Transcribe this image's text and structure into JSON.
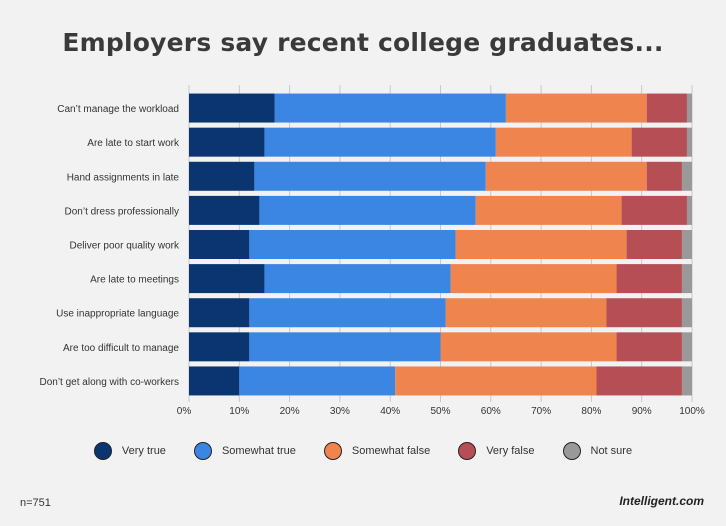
{
  "chart_data": {
    "type": "bar",
    "orientation": "horizontal",
    "stacked": true,
    "title": "Employers say recent college graduates...",
    "categories": [
      "Can’t manage the workload",
      "Are late to start work",
      "Hand assignments in late",
      "Don’t dress professionally",
      "Deliver poor quality work",
      "Are late to meetings",
      "Use inappropriate language",
      "Are too difficult to manage",
      "Don’t get along with co-workers"
    ],
    "series": [
      {
        "name": "Very true",
        "color": "#0a3570",
        "values": [
          17,
          15,
          13,
          14,
          12,
          15,
          12,
          12,
          10
        ]
      },
      {
        "name": "Somewhat true",
        "color": "#3b86e3",
        "values": [
          46,
          46,
          46,
          43,
          41,
          37,
          39,
          38,
          31
        ]
      },
      {
        "name": "Somewhat false",
        "color": "#ef844f",
        "values": [
          28,
          27,
          32,
          29,
          34,
          33,
          32,
          35,
          40
        ]
      },
      {
        "name": "Very false",
        "color": "#b54f55",
        "values": [
          8,
          11,
          7,
          13,
          11,
          13,
          15,
          13,
          17
        ]
      },
      {
        "name": "Not sure",
        "color": "#999999",
        "values": [
          1,
          1,
          2,
          1,
          2,
          2,
          2,
          2,
          2
        ]
      }
    ],
    "xlim": [
      0,
      100
    ],
    "xticks": [
      "0%",
      "10%",
      "20%",
      "30%",
      "40%",
      "50%",
      "60%",
      "70%",
      "80%",
      "90%",
      "100%"
    ],
    "grid": true,
    "legend_position": "bottom"
  },
  "footnote": "n=751",
  "brand": "Intelligent.com"
}
